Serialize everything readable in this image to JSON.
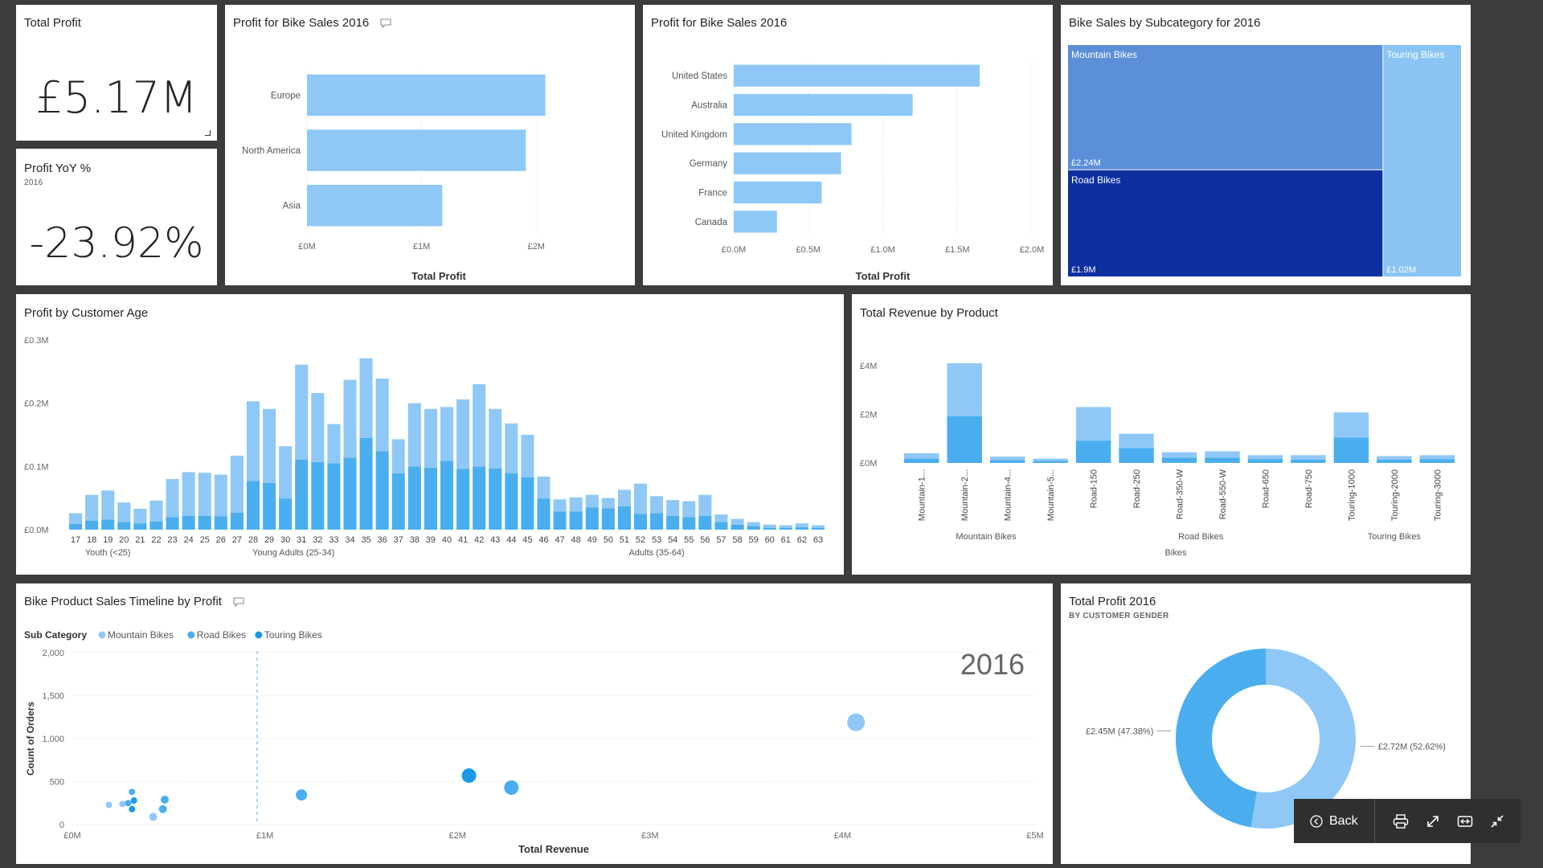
{
  "kpi_total_profit": {
    "title": "Total Profit",
    "value": "£5.17M"
  },
  "kpi_profit_yoy": {
    "title": "Profit YoY %",
    "subtitle": "2016",
    "value": "-23.92%"
  },
  "region_chart": {
    "title": "Profit for Bike Sales 2016",
    "chart_data": {
      "type": "bar",
      "orientation": "horizontal",
      "categories": [
        "Europe",
        "North America",
        "Asia"
      ],
      "values": [
        2.08,
        1.91,
        1.18
      ],
      "xlabel": "Total Profit",
      "xticks": [
        "£0M",
        "£1M",
        "£2M"
      ],
      "xlim": [
        0,
        2.3
      ]
    }
  },
  "country_chart": {
    "title": "Profit for Bike Sales 2016",
    "chart_data": {
      "type": "bar",
      "orientation": "horizontal",
      "categories": [
        "United States",
        "Australia",
        "United Kingdom",
        "Germany",
        "France",
        "Canada"
      ],
      "values": [
        1.65,
        1.2,
        0.79,
        0.72,
        0.59,
        0.29
      ],
      "xlabel": "Total Profit",
      "xticks": [
        "£0.0M",
        "£0.5M",
        "£1.0M",
        "£1.5M",
        "£2.0M"
      ],
      "xlim": [
        0,
        2.0
      ]
    }
  },
  "treemap": {
    "title": "Bike Sales by Subcategory for 2016",
    "chart_data": {
      "type": "treemap",
      "items": [
        {
          "name": "Mountain Bikes",
          "value_label": "£2.24M",
          "value": 2.24,
          "color": "#5b8fd8"
        },
        {
          "name": "Road Bikes",
          "value_label": "£1.9M",
          "value": 1.9,
          "color": "#0d2fa0"
        },
        {
          "name": "Touring Bikes",
          "value_label": "£1.02M",
          "value": 1.02,
          "color": "#89c4f4"
        }
      ]
    }
  },
  "age_chart": {
    "title": "Profit by Customer Age",
    "chart_data": {
      "type": "bar",
      "stacked": true,
      "categories": [
        "17",
        "18",
        "19",
        "20",
        "21",
        "22",
        "23",
        "24",
        "25",
        "26",
        "27",
        "28",
        "29",
        "30",
        "31",
        "32",
        "33",
        "34",
        "35",
        "36",
        "37",
        "38",
        "39",
        "40",
        "41",
        "42",
        "43",
        "44",
        "45",
        "46",
        "47",
        "48",
        "49",
        "50",
        "51",
        "52",
        "53",
        "54",
        "55",
        "56",
        "57",
        "58",
        "59",
        "60",
        "61",
        "62",
        "63"
      ],
      "series": [
        {
          "values": [
            0.009,
            0.014,
            0.016,
            0.012,
            0.01,
            0.013,
            0.02,
            0.022,
            0.022,
            0.021,
            0.027,
            0.077,
            0.074,
            0.049,
            0.111,
            0.107,
            0.105,
            0.114,
            0.145,
            0.124,
            0.089,
            0.1,
            0.098,
            0.109,
            0.096,
            0.1,
            0.097,
            0.089,
            0.083,
            0.049,
            0.029,
            0.029,
            0.035,
            0.034,
            0.037,
            0.025,
            0.026,
            0.022,
            0.02,
            0.022,
            0.012,
            0.008,
            0.006,
            0.003,
            0.003,
            0.004,
            0.003
          ]
        },
        {
          "values": [
            0.017,
            0.041,
            0.046,
            0.031,
            0.023,
            0.033,
            0.06,
            0.069,
            0.068,
            0.066,
            0.09,
            0.126,
            0.117,
            0.083,
            0.15,
            0.109,
            0.062,
            0.123,
            0.126,
            0.115,
            0.054,
            0.1,
            0.093,
            0.085,
            0.11,
            0.13,
            0.094,
            0.079,
            0.067,
            0.035,
            0.019,
            0.022,
            0.02,
            0.016,
            0.026,
            0.048,
            0.027,
            0.025,
            0.025,
            0.033,
            0.012,
            0.009,
            0.006,
            0.005,
            0.004,
            0.006,
            0.004
          ]
        }
      ],
      "ytick_labels": [
        "£0.0M",
        "£0.1M",
        "£0.2M",
        "£0.3M"
      ],
      "ylim": [
        0,
        0.3
      ],
      "groups": [
        {
          "label": "Youth (<25)"
        },
        {
          "label": "Young Adults (25-34)"
        },
        {
          "label": "Adults (35-64)"
        }
      ]
    }
  },
  "revenue_chart": {
    "title": "Total Revenue by Product",
    "chart_data": {
      "type": "bar",
      "stacked": true,
      "categories": [
        "Mountain-1...",
        "Mountain-2...",
        "Mountain-4...",
        "Mountain-5...",
        "Road-150",
        "Road-250",
        "Road-350-W",
        "Road-550-W",
        "Road-650",
        "Road-750",
        "Touring-1000",
        "Touring-2000",
        "Touring-3000"
      ],
      "series": [
        {
          "values": [
            0.18,
            1.92,
            0.12,
            0.08,
            0.92,
            0.62,
            0.22,
            0.22,
            0.16,
            0.14,
            1.04,
            0.14,
            0.16
          ]
        },
        {
          "values": [
            0.22,
            2.18,
            0.14,
            0.1,
            1.38,
            0.58,
            0.22,
            0.26,
            0.16,
            0.18,
            1.04,
            0.14,
            0.16
          ]
        }
      ],
      "ytick_labels": [
        "£0M",
        "£2M",
        "£4M"
      ],
      "ylim": [
        0,
        4.5
      ],
      "groups": [
        {
          "label": "Mountain Bikes"
        },
        {
          "label": "Road Bikes"
        },
        {
          "label": "Touring Bikes"
        }
      ],
      "xlabel": "Bikes"
    }
  },
  "scatter_chart": {
    "title": "Bike Product Sales Timeline by Profit",
    "legend_title": "Sub Category",
    "legend": [
      {
        "name": "Mountain Bikes",
        "color": "#8fc8f6"
      },
      {
        "name": "Road Bikes",
        "color": "#4aaeee"
      },
      {
        "name": "Touring Bikes",
        "color": "#1b98e6"
      }
    ],
    "play_year": "2016",
    "chart_data": {
      "type": "scatter",
      "xlabel": "Total Revenue",
      "ylabel": "Count of Orders",
      "xticks": [
        "£0M",
        "£1M",
        "£2M",
        "£3M",
        "£4M",
        "£5M"
      ],
      "xlim": [
        0,
        5
      ],
      "yticks": [
        "0",
        "500",
        "1,000",
        "1,500",
        "2,000"
      ],
      "ylim": [
        0,
        2000
      ],
      "series": [
        {
          "name": "Mountain Bikes",
          "points": [
            {
              "x": 0.19,
              "y": 230,
              "r": 4
            },
            {
              "x": 0.26,
              "y": 240,
              "r": 4
            },
            {
              "x": 0.42,
              "y": 90,
              "r": 5
            },
            {
              "x": 4.07,
              "y": 1190,
              "r": 11
            }
          ]
        },
        {
          "name": "Road Bikes",
          "points": [
            {
              "x": 0.29,
              "y": 250,
              "r": 4
            },
            {
              "x": 0.31,
              "y": 380,
              "r": 4
            },
            {
              "x": 0.47,
              "y": 180,
              "r": 5
            },
            {
              "x": 0.48,
              "y": 290,
              "r": 5
            },
            {
              "x": 1.19,
              "y": 345,
              "r": 7
            },
            {
              "x": 2.28,
              "y": 430,
              "r": 9
            }
          ]
        },
        {
          "name": "Touring Bikes",
          "points": [
            {
              "x": 0.32,
              "y": 280,
              "r": 4
            },
            {
              "x": 0.31,
              "y": 180,
              "r": 4
            },
            {
              "x": 2.06,
              "y": 570,
              "r": 9
            }
          ]
        }
      ]
    }
  },
  "donut_chart": {
    "title": "Total Profit 2016",
    "subtitle": "BY CUSTOMER GENDER",
    "chart_data": {
      "type": "pie",
      "donut": true,
      "slices": [
        {
          "value": 52.62,
          "label": "£2.72M (52.62%)",
          "color": "#8fc8f6"
        },
        {
          "value": 47.38,
          "label": "£2.45M (47.38%)",
          "color": "#4aaeee"
        }
      ]
    }
  },
  "toolbar": {
    "back_label": "Back"
  }
}
